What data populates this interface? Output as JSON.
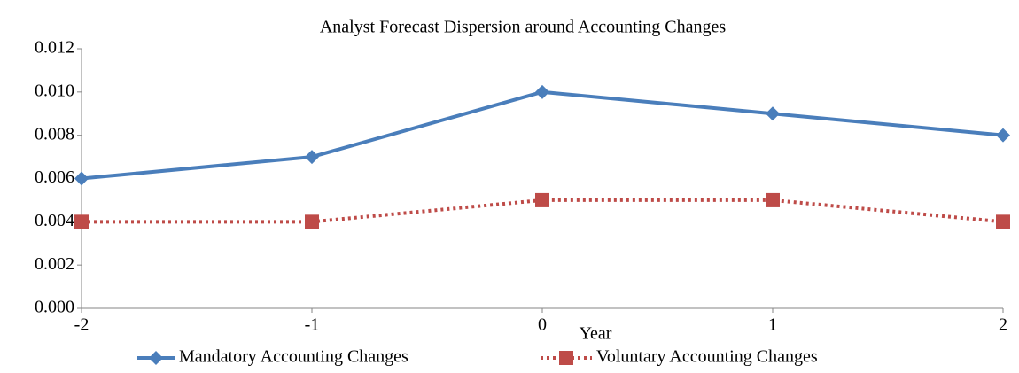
{
  "chart_data": {
    "type": "line",
    "title": "Analyst Forecast Dispersion around Accounting Changes",
    "x_label": "Year",
    "x": [
      -2,
      -1,
      0,
      1,
      2
    ],
    "xlim": [
      -2,
      2
    ],
    "xticks": [
      -2,
      -1,
      0,
      1,
      2
    ],
    "ylim": [
      0,
      0.012
    ],
    "yticks": [
      {
        "value": 0,
        "label": "0.000"
      },
      {
        "value": 0.002,
        "label": "0.002"
      },
      {
        "value": 0.004,
        "label": "0.004"
      },
      {
        "value": 0.006,
        "label": "0.006"
      },
      {
        "value": 0.008,
        "label": "0.008"
      },
      {
        "value": 0.01,
        "label": "0.010"
      },
      {
        "value": 0.012,
        "label": "0.012"
      }
    ],
    "grid": false,
    "legend": "bottom",
    "series": [
      {
        "name": "Mandatory Accounting Changes",
        "color": "#4a7ebb",
        "line_style": "solid",
        "marker": "diamond",
        "values": [
          0.006,
          0.007,
          0.01,
          0.009,
          0.008
        ]
      },
      {
        "name": "Voluntary Accounting Changes",
        "color": "#be4b48",
        "line_style": "dotted",
        "marker": "square",
        "values": [
          0.004,
          0.004,
          0.005,
          0.005,
          0.004
        ]
      }
    ]
  }
}
